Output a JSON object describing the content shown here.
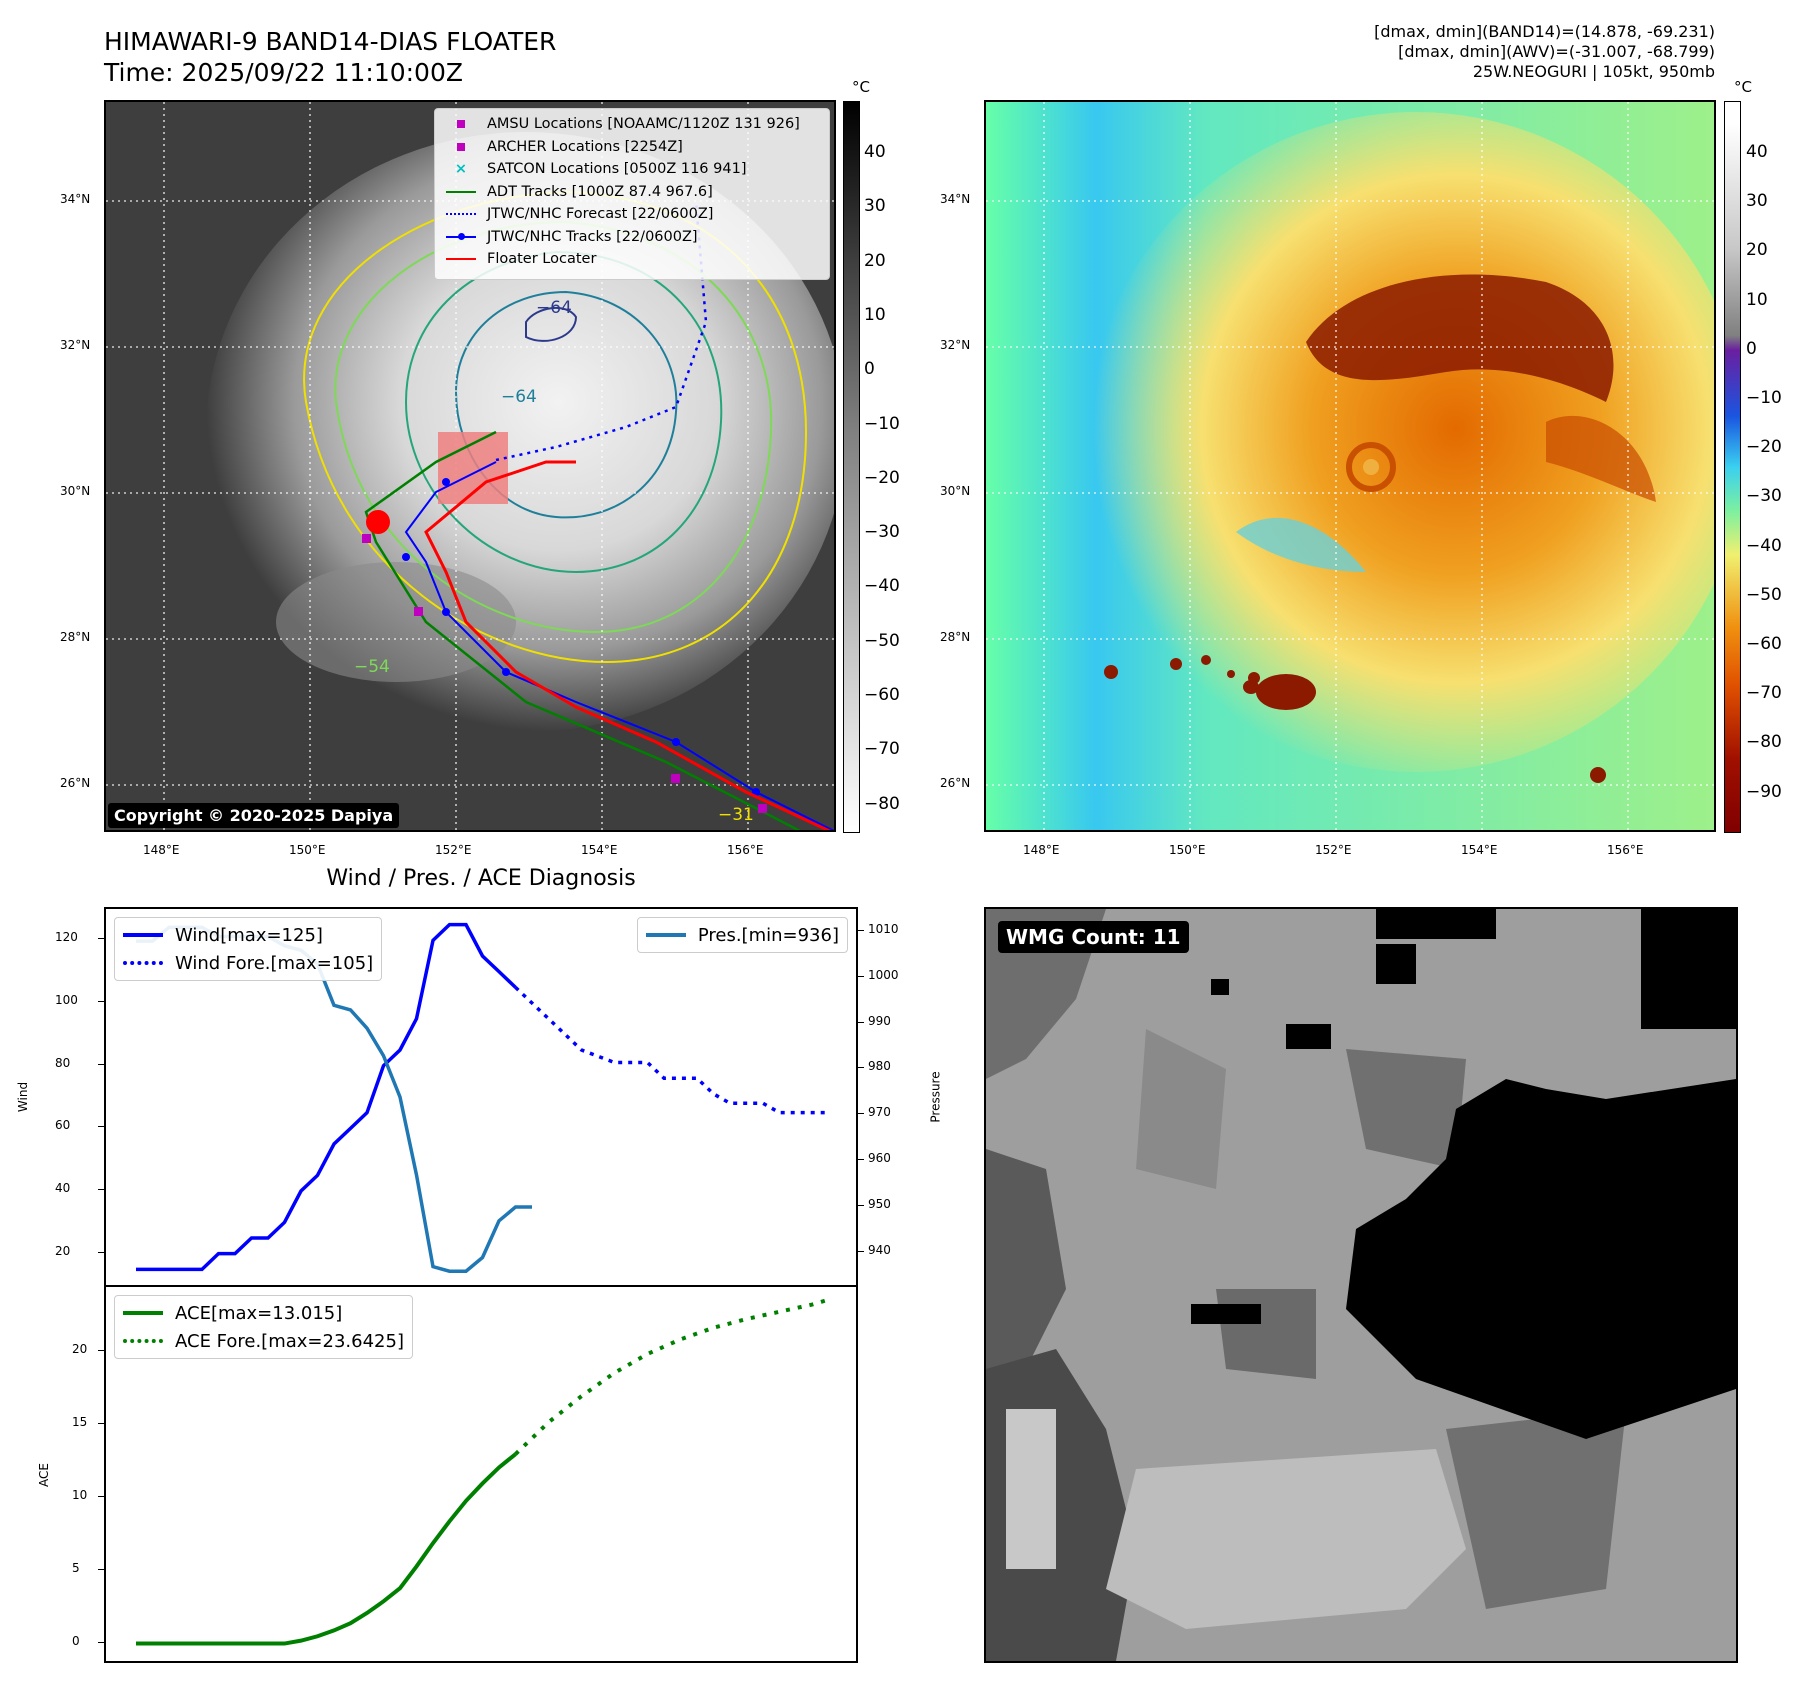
{
  "header": {
    "title_line1": "HIMAWARI-9 BAND14-DIAS FLOATER",
    "title_line2": "Time: 2025/09/22 11:10:00Z",
    "info_line1": "[dmax, dmin](BAND14)=(14.878, -69.231)",
    "info_line2": "[dmax, dmin](AWV)=(-31.007, -68.799)",
    "info_line3": "25W.NEOGURI | 105kt, 950mb"
  },
  "colorbar": {
    "unit": "°C",
    "gray_ticks": [
      "40",
      "30",
      "20",
      "10",
      "0",
      "−10",
      "−20",
      "−30",
      "−40",
      "−50",
      "−60",
      "−70",
      "−80"
    ],
    "color_ticks": [
      "40",
      "30",
      "20",
      "10",
      "0",
      "−10",
      "−20",
      "−30",
      "−40",
      "−50",
      "−60",
      "−70",
      "−80",
      "−90"
    ]
  },
  "map": {
    "lat_labels": [
      "34°N",
      "32°N",
      "30°N",
      "28°N",
      "26°N"
    ],
    "lon_labels": [
      "148°E",
      "150°E",
      "152°E",
      "154°E",
      "156°E"
    ],
    "contour_labels": [
      "−64",
      "−64",
      "−54",
      "−31"
    ],
    "copyright": "Copyright © 2020-2025 Dapiya",
    "colors": {
      "adt": "#008000",
      "jtwc": "#0000ff",
      "floater": "#ff0000",
      "amsu": "#bf00bf",
      "satcon": "#00bfbf"
    },
    "legend": [
      {
        "label": "AMSU Locations [NOAAMC/1120Z 131 926]",
        "icon": "square-marker"
      },
      {
        "label": "ARCHER Locations [2254Z]",
        "icon": "square-marker"
      },
      {
        "label": "SATCON Locations [0500Z 116 941]",
        "icon": "x-marker"
      },
      {
        "label": "ADT Tracks [1000Z 87.4 967.6]",
        "icon": "solid-line"
      },
      {
        "label": "JTWC/NHC Forecast [22/0600Z]",
        "icon": "dotted-line"
      },
      {
        "label": "JTWC/NHC Tracks [22/0600Z]",
        "icon": "line-dot"
      },
      {
        "label": "Floater Locater",
        "icon": "solid-line"
      }
    ]
  },
  "diagnosis": {
    "title": "Wind / Pres. / ACE Diagnosis",
    "wind_ylabel": "Wind",
    "pres_ylabel": "Pressure",
    "ace_ylabel": "ACE",
    "legend_wind": "Wind[max=125]",
    "legend_wind_fore": "Wind Fore.[max=105]",
    "legend_pres": "Pres.[min=936]",
    "legend_ace": "ACE[max=13.015]",
    "legend_ace_fore": "ACE Fore.[max=23.6425]"
  },
  "wmg": {
    "label": "WMG Count: 11"
  },
  "chart_data": [
    {
      "type": "line",
      "title": "Wind / Pres. / ACE Diagnosis",
      "ylabel": "Wind",
      "y2label": "Pressure",
      "ylim": [
        10,
        130
      ],
      "y2lim": [
        933,
        1015
      ],
      "yticks": [
        20,
        40,
        60,
        80,
        100,
        120
      ],
      "y2ticks": [
        940,
        950,
        960,
        970,
        980,
        990,
        1000,
        1010
      ],
      "series": [
        {
          "name": "Wind[max=125]",
          "axis": "left",
          "color": "#0000ff",
          "style": "solid",
          "x": [
            0,
            1,
            2,
            3,
            4,
            5,
            6,
            7,
            8,
            9,
            10,
            11,
            12,
            13,
            14,
            15,
            16,
            17,
            18,
            19,
            20,
            21,
            22,
            23
          ],
          "values": [
            15,
            15,
            15,
            15,
            15,
            20,
            20,
            25,
            25,
            30,
            40,
            45,
            55,
            60,
            65,
            80,
            85,
            95,
            120,
            125,
            125,
            115,
            110,
            105
          ]
        },
        {
          "name": "Wind Fore.[max=105]",
          "axis": "left",
          "color": "#0000ff",
          "style": "dotted",
          "x": [
            23,
            24,
            25,
            26,
            27,
            28,
            29,
            30,
            31,
            32,
            33,
            34,
            35,
            36,
            37,
            38,
            39,
            40,
            41,
            42
          ],
          "values": [
            105,
            100,
            95,
            90,
            85,
            83,
            81,
            81,
            81,
            76,
            76,
            76,
            71,
            68,
            68,
            68,
            65,
            65,
            65,
            65
          ]
        },
        {
          "name": "Pres.[min=936]",
          "axis": "right",
          "color": "#1f77b4",
          "style": "solid",
          "x": [
            0,
            1,
            2,
            3,
            4,
            5,
            6,
            7,
            8,
            9,
            10,
            11,
            12,
            13,
            14,
            15,
            16,
            17,
            18,
            19,
            20,
            21,
            22,
            23,
            24
          ],
          "values": [
            1008,
            1008,
            1011,
            1011,
            1011,
            1009,
            1009,
            1009,
            1009,
            1007,
            1006,
            1003,
            994,
            993,
            989,
            983,
            974,
            957,
            937,
            936,
            936,
            939,
            947,
            950,
            950
          ]
        }
      ]
    },
    {
      "type": "line",
      "ylabel": "ACE",
      "ylim": [
        -1.2,
        24.5
      ],
      "yticks": [
        0,
        5,
        10,
        15,
        20
      ],
      "series": [
        {
          "name": "ACE[max=13.015]",
          "color": "#008000",
          "style": "solid",
          "x": [
            0,
            2,
            4,
            6,
            8,
            9,
            10,
            11,
            12,
            13,
            14,
            15,
            16,
            17,
            18,
            19,
            20,
            21,
            22,
            23
          ],
          "values": [
            0,
            0,
            0,
            0,
            0,
            0,
            0.2,
            0.5,
            0.9,
            1.4,
            2.1,
            2.9,
            3.8,
            5.3,
            6.9,
            8.4,
            9.8,
            11,
            12.1,
            13.015
          ]
        },
        {
          "name": "ACE Fore.[max=23.6425]",
          "color": "#008000",
          "style": "dotted",
          "x": [
            23,
            25,
            27,
            29,
            31,
            33,
            35,
            37,
            39,
            41,
            42
          ],
          "values": [
            13.015,
            15.2,
            17,
            18.6,
            19.9,
            20.9,
            21.7,
            22.3,
            22.8,
            23.3,
            23.6425
          ]
        }
      ]
    }
  ]
}
